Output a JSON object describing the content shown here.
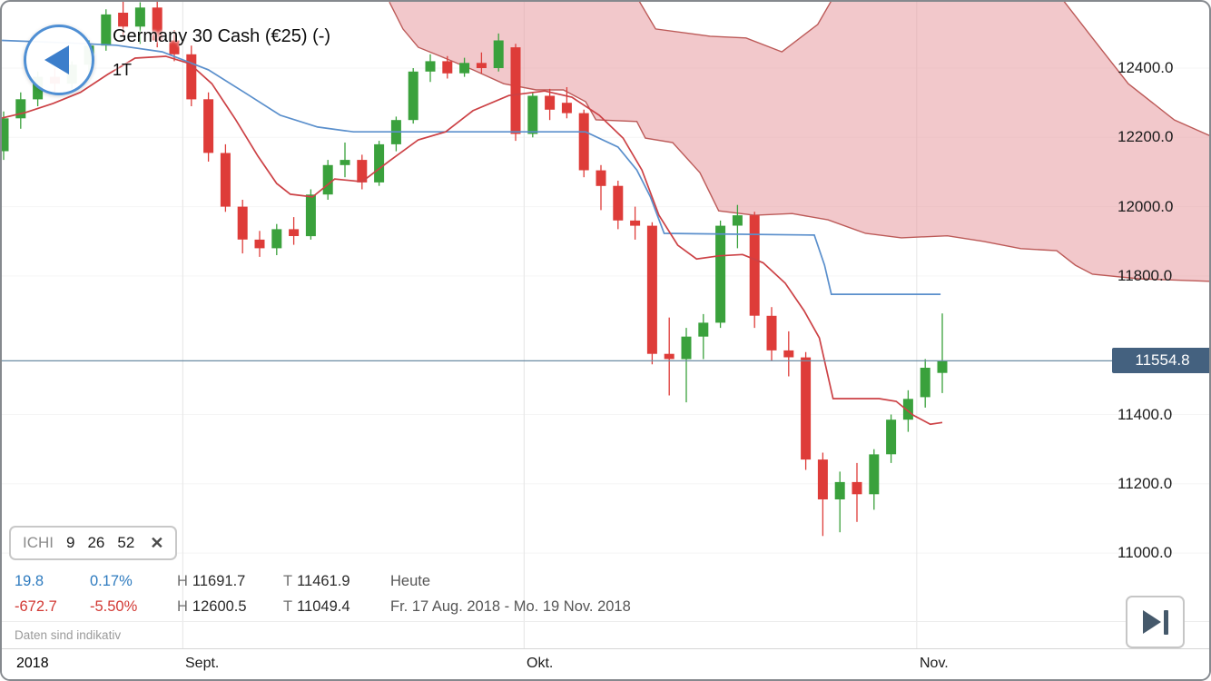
{
  "header": {
    "title": "Germany 30 Cash (€25) (-)",
    "timeframe": "1T"
  },
  "icons": {
    "back": "left-triangle-icon",
    "skip_to_end": "step-forward-icon",
    "chip_close": "✕"
  },
  "indicator_chip": {
    "name": "ICHI",
    "params": [
      "9",
      "26",
      "52"
    ]
  },
  "stats": {
    "today": {
      "change": "19.8",
      "change_pct": "0.17%",
      "high_label": "H",
      "high": "11691.7",
      "low_label": "T",
      "low": "11461.9",
      "period": "Heute"
    },
    "range": {
      "change": "-672.7",
      "change_pct": "-5.50%",
      "high_label": "H",
      "high": "12600.5",
      "low_label": "T",
      "low": "11049.4",
      "period": "Fr. 17 Aug. 2018 - Mo. 19 Nov. 2018"
    }
  },
  "footer": {
    "disclaimer": "Daten sind indikativ"
  },
  "price_scale": {
    "current_label": "11554.8"
  },
  "colors": {
    "up": "#3aa13c",
    "down": "#de3c39",
    "tenkan": "#cc4145",
    "kijun": "#5a8fcc",
    "cloud_fill": "#e89aa0",
    "cloud_edge": "#bc5a58",
    "price_line": "#6b8ca4",
    "badge_bg": "#44617f",
    "grid_v": "#e9e9e9",
    "grid_h": "#f5f5f5"
  },
  "chart_data": {
    "type": "candlestick",
    "title": "Germany 30 Cash (€25) (-)",
    "interval": "1T",
    "indicator": "ICHI (9, 26, 52)",
    "x_axis": {
      "year": "2018",
      "months": [
        {
          "label": "Sept.",
          "boundary_index": 10.5
        },
        {
          "label": "Okt.",
          "boundary_index": 30.5
        },
        {
          "label": "Nov.",
          "boundary_index": 53.5
        }
      ]
    },
    "y_axis": {
      "ticks": [
        12400,
        12200,
        12000,
        11800,
        11400,
        11200,
        11000
      ],
      "price_at_top": 12591.4,
      "price_at_bottom": 10625.4
    },
    "current_price": 11554.8,
    "candles": {
      "columns": [
        "date",
        "open",
        "high",
        "low",
        "close"
      ],
      "rows": [
        [
          "2018-08-17",
          12160,
          12275,
          12135,
          12255
        ],
        [
          "2018-08-20",
          12255,
          12330,
          12225,
          12310
        ],
        [
          "2018-08-21",
          12310,
          12390,
          12290,
          12375
        ],
        [
          "2018-08-22",
          12375,
          12400,
          12330,
          12355
        ],
        [
          "2018-08-23",
          12355,
          12420,
          12340,
          12410
        ],
        [
          "2018-08-24",
          12410,
          12480,
          12380,
          12465
        ],
        [
          "2018-08-27",
          12465,
          12570,
          12450,
          12555
        ],
        [
          "2018-08-28",
          12560,
          12600.5,
          12490,
          12520
        ],
        [
          "2018-08-29",
          12520,
          12590,
          12470,
          12575
        ],
        [
          "2018-08-30",
          12575,
          12595,
          12460,
          12480
        ],
        [
          "2018-08-31",
          12480,
          12510,
          12420,
          12440
        ],
        [
          "2018-09-03",
          12440,
          12465,
          12290,
          12310
        ],
        [
          "2018-09-04",
          12310,
          12330,
          12130,
          12155
        ],
        [
          "2018-09-05",
          12155,
          12180,
          11985,
          12000
        ],
        [
          "2018-09-06",
          12000,
          12020,
          11865,
          11905
        ],
        [
          "2018-09-07",
          11905,
          11930,
          11855,
          11880
        ],
        [
          "2018-09-10",
          11880,
          11950,
          11860,
          11935
        ],
        [
          "2018-09-11",
          11935,
          11970,
          11890,
          11915
        ],
        [
          "2018-09-12",
          11915,
          12050,
          11905,
          12035
        ],
        [
          "2018-09-13",
          12035,
          12135,
          12020,
          12120
        ],
        [
          "2018-09-14",
          12120,
          12185,
          12085,
          12135
        ],
        [
          "2018-09-17",
          12135,
          12150,
          12050,
          12070
        ],
        [
          "2018-09-18",
          12070,
          12190,
          12060,
          12180
        ],
        [
          "2018-09-19",
          12180,
          12260,
          12160,
          12250
        ],
        [
          "2018-09-20",
          12250,
          12400,
          12240,
          12390
        ],
        [
          "2018-09-21",
          12390,
          12440,
          12360,
          12420
        ],
        [
          "2018-09-24",
          12420,
          12435,
          12370,
          12385
        ],
        [
          "2018-09-25",
          12385,
          12430,
          12375,
          12415
        ],
        [
          "2018-09-26",
          12415,
          12445,
          12385,
          12400
        ],
        [
          "2018-09-27",
          12400,
          12500,
          12390,
          12480
        ],
        [
          "2018-09-28",
          12460,
          12470,
          12190,
          12210
        ],
        [
          "2018-10-01",
          12210,
          12330,
          12200,
          12320
        ],
        [
          "2018-10-02",
          12320,
          12340,
          12250,
          12280
        ],
        [
          "2018-10-03",
          12300,
          12345,
          12255,
          12270
        ],
        [
          "2018-10-04",
          12270,
          12280,
          12085,
          12105
        ],
        [
          "2018-10-05",
          12105,
          12120,
          11990,
          12060
        ],
        [
          "2018-10-08",
          12060,
          12075,
          11935,
          11960
        ],
        [
          "2018-10-09",
          11960,
          12000,
          11905,
          11945
        ],
        [
          "2018-10-10",
          11945,
          11955,
          11545,
          11575
        ],
        [
          "2018-10-11",
          11575,
          11680,
          11455,
          11560
        ],
        [
          "2018-10-12",
          11560,
          11650,
          11435,
          11625
        ],
        [
          "2018-10-15",
          11625,
          11690,
          11560,
          11665
        ],
        [
          "2018-10-16",
          11665,
          11960,
          11650,
          11945
        ],
        [
          "2018-10-17",
          11945,
          12005,
          11880,
          11975
        ],
        [
          "2018-10-18",
          11975,
          11985,
          11650,
          11685
        ],
        [
          "2018-10-19",
          11685,
          11710,
          11555,
          11585
        ],
        [
          "2018-10-22",
          11585,
          11640,
          11510,
          11565
        ],
        [
          "2018-10-23",
          11565,
          11580,
          11240,
          11270
        ],
        [
          "2018-10-24",
          11270,
          11290,
          11049.4,
          11155
        ],
        [
          "2018-10-25",
          11155,
          11235,
          11060,
          11205
        ],
        [
          "2018-10-26",
          11205,
          11260,
          11090,
          11170
        ],
        [
          "2018-10-29",
          11170,
          11300,
          11125,
          11285
        ],
        [
          "2018-10-30",
          11285,
          11400,
          11260,
          11385
        ],
        [
          "2018-10-31",
          11385,
          11470,
          11350,
          11445
        ],
        [
          "2018-11-01",
          11450,
          11560,
          11420,
          11535
        ],
        [
          "2018-11-02",
          11520,
          11691.7,
          11461.9,
          11554.8
        ]
      ]
    },
    "ichimoku": {
      "settings": [
        9,
        26,
        52
      ],
      "tenkan": [
        [
          -0.1,
          12256
        ],
        [
          1.3,
          12272
        ],
        [
          2.9,
          12298
        ],
        [
          4.5,
          12330
        ],
        [
          6.1,
          12382
        ],
        [
          7.7,
          12429
        ],
        [
          9.5,
          12434
        ],
        [
          10.9,
          12413
        ],
        [
          12.2,
          12355
        ],
        [
          13.6,
          12251
        ],
        [
          14.9,
          12146
        ],
        [
          16,
          12067
        ],
        [
          16.8,
          12036
        ],
        [
          18.1,
          12028
        ],
        [
          19.4,
          12080
        ],
        [
          21,
          12072
        ],
        [
          22.6,
          12132
        ],
        [
          24.3,
          12193
        ],
        [
          25.9,
          12216
        ],
        [
          27.5,
          12277
        ],
        [
          29.6,
          12321
        ],
        [
          31.7,
          12334
        ],
        [
          33.3,
          12316
        ],
        [
          34.9,
          12264
        ],
        [
          36.3,
          12198
        ],
        [
          37.4,
          12106
        ],
        [
          38.4,
          11975
        ],
        [
          39.5,
          11889
        ],
        [
          40.6,
          11849
        ],
        [
          41.9,
          11858
        ],
        [
          43.3,
          11862
        ],
        [
          44.5,
          11838
        ],
        [
          45.8,
          11779
        ],
        [
          46.9,
          11700
        ],
        [
          47.8,
          11621
        ],
        [
          48.6,
          11446
        ],
        [
          51.3,
          11446
        ],
        [
          52.3,
          11438
        ],
        [
          53.3,
          11398
        ],
        [
          54.3,
          11372
        ],
        [
          55,
          11377
        ]
      ],
      "kijun": [
        [
          -0.1,
          12480
        ],
        [
          3.7,
          12473
        ],
        [
          6.6,
          12466
        ],
        [
          9.3,
          12447
        ],
        [
          12,
          12395
        ],
        [
          14.1,
          12330
        ],
        [
          16.2,
          12264
        ],
        [
          18.4,
          12230
        ],
        [
          20.5,
          12216
        ],
        [
          34.1,
          12216
        ],
        [
          36,
          12172
        ],
        [
          37.1,
          12106
        ],
        [
          37.9,
          12028
        ],
        [
          38.7,
          11923
        ],
        [
          47.5,
          11918
        ],
        [
          48.1,
          11831
        ],
        [
          48.5,
          11747
        ],
        [
          54.9,
          11747
        ]
      ],
      "senkou_a": [
        [
          22.6,
          12591
        ],
        [
          23.4,
          12513
        ],
        [
          24.3,
          12460
        ],
        [
          25.6,
          12434
        ],
        [
          27.5,
          12395
        ],
        [
          29.3,
          12355
        ],
        [
          31.2,
          12337
        ],
        [
          32.8,
          12337
        ],
        [
          34.1,
          12303
        ],
        [
          34.7,
          12251
        ],
        [
          37.1,
          12246
        ],
        [
          37.6,
          12198
        ],
        [
          39.2,
          12185
        ],
        [
          40.8,
          12098
        ],
        [
          41.9,
          11988
        ],
        [
          44,
          11975
        ],
        [
          46.2,
          11980
        ],
        [
          48.3,
          11962
        ],
        [
          50.5,
          11923
        ],
        [
          52.6,
          11910
        ],
        [
          55.3,
          11916
        ],
        [
          57.4,
          11900
        ],
        [
          59.6,
          11879
        ],
        [
          61.7,
          11873
        ],
        [
          62.8,
          11831
        ],
        [
          63.8,
          11805
        ],
        [
          66.5,
          11792
        ],
        [
          70.9,
          11784
        ]
      ],
      "senkou_b": [
        [
          22.6,
          12650
        ],
        [
          37.1,
          12605
        ],
        [
          38.2,
          12513
        ],
        [
          41.4,
          12492
        ],
        [
          43.5,
          12487
        ],
        [
          45.6,
          12447
        ],
        [
          47.7,
          12526
        ],
        [
          48.8,
          12620
        ],
        [
          61.7,
          12620
        ],
        [
          63.8,
          12487
        ],
        [
          65.9,
          12355
        ],
        [
          68.6,
          12250
        ],
        [
          70.9,
          12200
        ]
      ]
    }
  }
}
